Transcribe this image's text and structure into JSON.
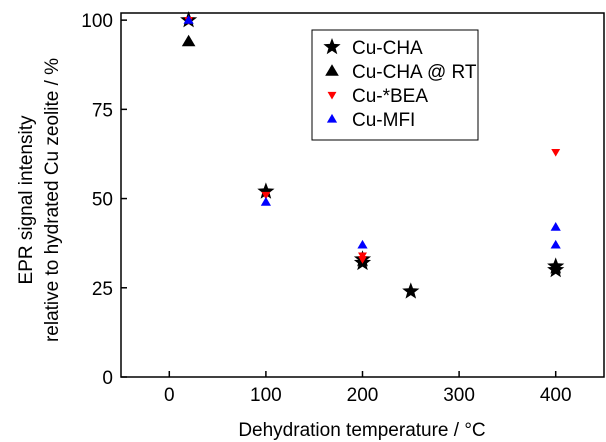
{
  "chart_data": {
    "type": "scatter",
    "x_label": "Dehydration temperature / °C",
    "y_label": [
      "EPR signal intensity",
      "relative to hydrated Cu zeolite / %"
    ],
    "xlim": [
      -50,
      450
    ],
    "xticks": [
      0,
      100,
      200,
      300,
      400
    ],
    "ylim": [
      0,
      102
    ],
    "yticks": [
      0,
      25,
      50,
      75,
      100
    ],
    "series": [
      {
        "name": "Cu-CHA",
        "color": "#000000",
        "marker": "star",
        "x": [
          20,
          100,
          200,
          200,
          250,
          400,
          400
        ],
        "values": [
          100,
          52,
          32,
          33,
          24,
          30,
          31
        ]
      },
      {
        "name": "Cu-CHA @ RT",
        "color": "#000000",
        "marker": "triangle-up",
        "x": [
          20
        ],
        "values": [
          94
        ]
      },
      {
        "name": "Cu-*BEA",
        "color": "#ff0000",
        "marker": "triangle-down",
        "x": [
          20,
          100,
          200,
          200,
          400
        ],
        "values": [
          100,
          51,
          34,
          33,
          63
        ]
      },
      {
        "name": "Cu-MFI",
        "color": "#0000ff",
        "marker": "triangle-up",
        "x": [
          20,
          100,
          200,
          400,
          400
        ],
        "values": [
          100,
          49,
          37,
          42,
          37
        ]
      }
    ]
  }
}
